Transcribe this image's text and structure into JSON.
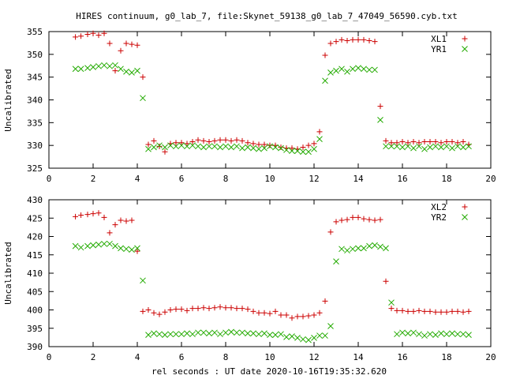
{
  "chart_data": {
    "type": "scatter",
    "title": "HIRES continuum, g0_lab_7, file:Skynet_59138_g0_lab_7_47049_56590.cyb.txt",
    "xlabel": "rel seconds : UT date 2020-10-16T19:35:32.620",
    "panels": [
      {
        "ylabel": "Uncalibrated",
        "xlim": [
          0,
          20
        ],
        "ylim": [
          325,
          355
        ],
        "xticks": [
          "0",
          "2",
          "4",
          "6",
          "8",
          "10",
          "12",
          "14",
          "16",
          "18",
          "20"
        ],
        "yticks": [
          "325",
          "330",
          "335",
          "340",
          "345",
          "350",
          "355"
        ],
        "series": [
          {
            "name": "XL1",
            "marker": "plus",
            "color": "#cc0000",
            "x": [
              1.2,
              1.45,
              1.75,
              2.0,
              2.25,
              2.5,
              2.75,
              3.0,
              3.25,
              3.5,
              3.75,
              4.0,
              4.25,
              4.5,
              4.75,
              5.0,
              5.25,
              5.5,
              5.75,
              6.0,
              6.25,
              6.5,
              6.75,
              7.0,
              7.25,
              7.5,
              7.75,
              8.0,
              8.25,
              8.5,
              8.75,
              9.0,
              9.25,
              9.5,
              9.75,
              10.0,
              10.25,
              10.5,
              10.75,
              11.0,
              11.25,
              11.5,
              11.75,
              12.0,
              12.25,
              12.5,
              12.75,
              13.0,
              13.25,
              13.5,
              13.75,
              14.0,
              14.25,
              14.5,
              14.75,
              15.0,
              15.25,
              15.5,
              15.75,
              16.0,
              16.25,
              16.5,
              16.75,
              17.0,
              17.25,
              17.5,
              17.75,
              18.0,
              18.25,
              18.5,
              18.75,
              19.0
            ],
            "y": [
              353.8,
              354.0,
              354.4,
              354.6,
              354.2,
              354.6,
              352.4,
              346.4,
              350.8,
              352.4,
              352.2,
              352.0,
              345.0,
              330.2,
              331.0,
              329.8,
              328.6,
              330.4,
              330.6,
              330.6,
              330.4,
              330.8,
              331.2,
              331.0,
              330.8,
              331.0,
              331.2,
              331.2,
              331.0,
              331.2,
              331.0,
              330.6,
              330.4,
              330.2,
              330.2,
              330.0,
              330.0,
              329.6,
              329.4,
              329.4,
              329.2,
              329.6,
              330.0,
              330.4,
              333.0,
              349.8,
              352.4,
              352.8,
              353.2,
              353.0,
              353.2,
              353.2,
              353.2,
              353.0,
              352.8,
              338.6,
              331.0,
              330.6,
              330.6,
              330.8,
              330.6,
              330.8,
              330.6,
              330.8,
              330.8,
              330.8,
              330.6,
              330.8,
              330.8,
              330.6,
              330.8,
              330.2
            ]
          },
          {
            "name": "YR1",
            "marker": "cross",
            "color": "#22aa00",
            "x": [
              1.2,
              1.45,
              1.75,
              2.0,
              2.25,
              2.5,
              2.75,
              3.0,
              3.25,
              3.5,
              3.75,
              4.0,
              4.25,
              4.5,
              4.75,
              5.0,
              5.25,
              5.5,
              5.75,
              6.0,
              6.25,
              6.5,
              6.75,
              7.0,
              7.25,
              7.5,
              7.75,
              8.0,
              8.25,
              8.5,
              8.75,
              9.0,
              9.25,
              9.5,
              9.75,
              10.0,
              10.25,
              10.5,
              10.75,
              11.0,
              11.25,
              11.5,
              11.75,
              12.0,
              12.25,
              12.5,
              12.75,
              13.0,
              13.25,
              13.5,
              13.75,
              14.0,
              14.25,
              14.5,
              14.75,
              15.0,
              15.25,
              15.5,
              15.75,
              16.0,
              16.25,
              16.5,
              16.75,
              17.0,
              17.25,
              17.5,
              17.75,
              18.0,
              18.25,
              18.5,
              18.75,
              19.0
            ],
            "y": [
              346.8,
              346.8,
              347.0,
              347.2,
              347.4,
              347.6,
              347.4,
              347.6,
              346.8,
              346.2,
              346.0,
              346.4,
              340.4,
              329.2,
              329.6,
              330.0,
              329.6,
              330.0,
              329.8,
              330.0,
              329.8,
              330.0,
              329.8,
              329.6,
              329.8,
              329.8,
              329.6,
              329.8,
              329.6,
              329.8,
              329.4,
              329.6,
              329.4,
              329.2,
              329.4,
              329.8,
              329.6,
              329.4,
              329.0,
              328.8,
              328.8,
              328.6,
              328.6,
              329.2,
              331.4,
              344.2,
              346.0,
              346.4,
              346.8,
              346.2,
              346.8,
              347.0,
              346.8,
              346.6,
              346.6,
              335.6,
              329.8,
              329.8,
              329.8,
              329.6,
              329.8,
              329.4,
              329.8,
              329.2,
              329.6,
              329.8,
              329.6,
              329.8,
              329.4,
              329.8,
              329.6,
              329.8
            ]
          }
        ]
      },
      {
        "ylabel": "Uncalibrated",
        "xlim": [
          0,
          20
        ],
        "ylim": [
          390,
          430
        ],
        "xticks": [
          "0",
          "2",
          "4",
          "6",
          "8",
          "10",
          "12",
          "14",
          "16",
          "18",
          "20"
        ],
        "yticks": [
          "390",
          "395",
          "400",
          "405",
          "410",
          "415",
          "420",
          "425",
          "430"
        ],
        "series": [
          {
            "name": "XL2",
            "marker": "plus",
            "color": "#cc0000",
            "x": [
              1.2,
              1.45,
              1.75,
              2.0,
              2.25,
              2.5,
              2.75,
              3.0,
              3.25,
              3.5,
              3.75,
              4.0,
              4.25,
              4.5,
              4.75,
              5.0,
              5.25,
              5.5,
              5.75,
              6.0,
              6.25,
              6.5,
              6.75,
              7.0,
              7.25,
              7.5,
              7.75,
              8.0,
              8.25,
              8.5,
              8.75,
              9.0,
              9.25,
              9.5,
              9.75,
              10.0,
              10.25,
              10.5,
              10.75,
              11.0,
              11.25,
              11.5,
              11.75,
              12.0,
              12.25,
              12.5,
              12.75,
              13.0,
              13.25,
              13.5,
              13.75,
              14.0,
              14.25,
              14.5,
              14.75,
              15.0,
              15.25,
              15.5,
              15.75,
              16.0,
              16.25,
              16.5,
              16.75,
              17.0,
              17.25,
              17.5,
              17.75,
              18.0,
              18.25,
              18.5,
              18.75,
              19.0
            ],
            "y": [
              425.4,
              425.8,
              426.0,
              426.2,
              426.4,
              425.2,
              421.0,
              423.2,
              424.4,
              424.2,
              424.4,
              416.0,
              399.6,
              400.0,
              399.2,
              398.8,
              399.4,
              400.0,
              400.2,
              400.2,
              399.8,
              400.4,
              400.4,
              400.6,
              400.4,
              400.6,
              400.8,
              400.6,
              400.6,
              400.4,
              400.4,
              400.2,
              399.6,
              399.2,
              399.2,
              399.0,
              399.6,
              398.6,
              398.6,
              397.8,
              398.2,
              398.2,
              398.4,
              398.6,
              399.2,
              402.4,
              421.2,
              424.0,
              424.4,
              424.6,
              425.2,
              425.2,
              424.8,
              424.6,
              424.4,
              424.6,
              407.8,
              400.4,
              399.8,
              399.8,
              399.6,
              399.6,
              399.8,
              399.6,
              399.6,
              399.4,
              399.4,
              399.4,
              399.6,
              399.6,
              399.4,
              399.6
            ]
          },
          {
            "name": "YR2",
            "marker": "cross",
            "color": "#22aa00",
            "x": [
              1.2,
              1.45,
              1.75,
              2.0,
              2.25,
              2.5,
              2.75,
              3.0,
              3.25,
              3.5,
              3.75,
              4.0,
              4.25,
              4.5,
              4.75,
              5.0,
              5.25,
              5.5,
              5.75,
              6.0,
              6.25,
              6.5,
              6.75,
              7.0,
              7.25,
              7.5,
              7.75,
              8.0,
              8.25,
              8.5,
              8.75,
              9.0,
              9.25,
              9.5,
              9.75,
              10.0,
              10.25,
              10.5,
              10.75,
              11.0,
              11.25,
              11.5,
              11.75,
              12.0,
              12.25,
              12.5,
              12.75,
              13.0,
              13.25,
              13.5,
              13.75,
              14.0,
              14.25,
              14.5,
              14.75,
              15.0,
              15.25,
              15.5,
              15.75,
              16.0,
              16.25,
              16.5,
              16.75,
              17.0,
              17.25,
              17.5,
              17.75,
              18.0,
              18.25,
              18.5,
              18.75,
              19.0
            ],
            "y": [
              417.4,
              417.0,
              417.4,
              417.6,
              417.8,
              418.0,
              418.0,
              417.4,
              416.8,
              416.6,
              416.4,
              416.8,
              408.0,
              393.2,
              393.6,
              393.4,
              393.2,
              393.4,
              393.4,
              393.4,
              393.6,
              393.4,
              393.8,
              393.8,
              393.6,
              393.8,
              393.4,
              393.8,
              394.0,
              393.8,
              393.8,
              393.6,
              393.6,
              393.4,
              393.6,
              393.2,
              393.2,
              393.4,
              392.6,
              392.8,
              392.4,
              392.0,
              391.8,
              392.4,
              393.0,
              393.0,
              395.6,
              413.2,
              416.6,
              416.2,
              416.6,
              416.8,
              416.8,
              417.4,
              417.6,
              417.2,
              416.8,
              402.0,
              393.4,
              393.8,
              393.6,
              393.8,
              393.4,
              393.0,
              393.4,
              393.2,
              393.6,
              393.4,
              393.6,
              393.4,
              393.4,
              393.2
            ]
          }
        ]
      }
    ]
  }
}
